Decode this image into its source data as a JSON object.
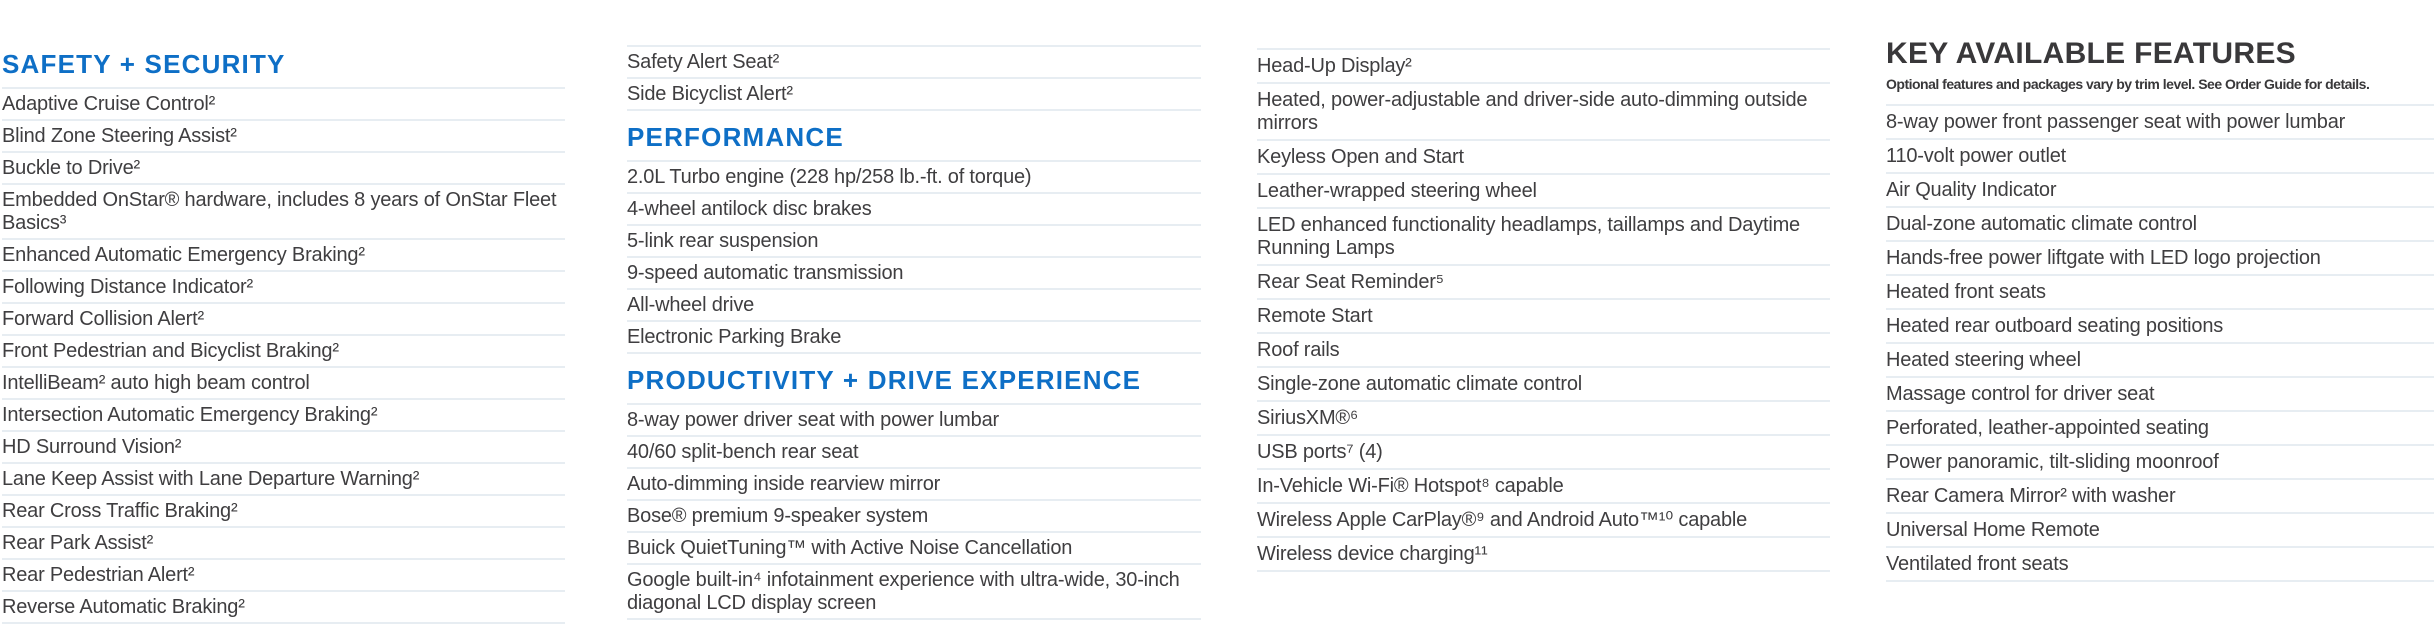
{
  "colors": {
    "accent_blue": "#0e6fc6",
    "text_dark": "#3f3e40",
    "header_dark": "#39383a",
    "divider": "#e7edf2",
    "background": "#ffffff"
  },
  "columns": [
    {
      "name": "column-safety-security",
      "sections": [
        {
          "header": {
            "label": "SAFETY + SECURITY",
            "style": "blue"
          },
          "items": [
            "Adaptive Cruise Control²",
            "Blind Zone Steering Assist²",
            "Buckle to Drive²",
            "Embedded OnStar® hardware, includes 8 years of OnStar Fleet Basics³",
            "Enhanced Automatic Emergency Braking²",
            "Following Distance Indicator²",
            "Forward Collision Alert²",
            "Front Pedestrian and Bicyclist Braking²",
            "IntelliBeam² auto high beam control",
            "Intersection Automatic Emergency Braking²",
            "HD Surround Vision²",
            "Lane Keep Assist with Lane Departure Warning²",
            "Rear Cross Traffic Braking²",
            "Rear Park Assist²",
            "Rear Pedestrian Alert²",
            "Reverse Automatic Braking²"
          ]
        }
      ]
    },
    {
      "name": "column-performance",
      "sections": [
        {
          "top_rule": true,
          "items": [
            "Safety Alert Seat²",
            "Side Bicyclist Alert²"
          ]
        },
        {
          "header": {
            "label": "PERFORMANCE",
            "style": "blue"
          },
          "items": [
            "2.0L Turbo engine (228 hp/258 lb.-ft. of torque)",
            "4-wheel antilock disc brakes",
            "5-link rear suspension",
            "9-speed automatic transmission",
            "All-wheel drive",
            "Electronic Parking Brake"
          ]
        },
        {
          "header": {
            "label": "PRODUCTIVITY + DRIVE EXPERIENCE",
            "style": "blue"
          },
          "items": [
            "8-way power driver seat with power lumbar",
            "40/60 split-bench rear seat",
            "Auto-dimming inside rearview mirror",
            "Bose® premium 9-speaker system",
            "Buick QuietTuning™ with Active Noise Cancellation",
            "Google built-in⁴ infotainment experience with ultra-wide, 30-inch diagonal LCD display screen"
          ]
        }
      ]
    },
    {
      "name": "column-productivity-continued",
      "sections": [
        {
          "top_rule": true,
          "items": [
            "Head-Up Display²",
            "Heated, power-adjustable and driver-side auto-dimming outside mirrors",
            "Keyless Open and Start",
            "Leather-wrapped steering wheel",
            "LED enhanced functionality headlamps, taillamps and Daytime Running Lamps",
            "Rear Seat Reminder⁵",
            "Remote Start",
            "Roof rails",
            "Single-zone automatic climate control",
            "SiriusXM®⁶",
            "USB ports⁷ (4)",
            "In-Vehicle Wi-Fi® Hotspot⁸ capable",
            "Wireless Apple CarPlay®⁹ and Android Auto™¹⁰ capable",
            "Wireless device charging¹¹"
          ]
        }
      ]
    },
    {
      "name": "column-key-available-features",
      "sections": [
        {
          "header": {
            "label": "KEY AVAILABLE FEATURES",
            "style": "dark"
          },
          "note": "Optional features and packages vary by trim level. See Order Guide for details.",
          "items": [
            "8-way power front passenger seat with power lumbar",
            "110-volt power outlet",
            "Air Quality Indicator",
            "Dual-zone automatic climate control",
            "Hands-free power liftgate with LED logo projection",
            "Heated front seats",
            "Heated rear outboard seating positions",
            "Heated steering wheel",
            "Massage control for driver seat",
            "Perforated, leather-appointed seating",
            "Power panoramic, tilt-sliding moonroof",
            "Rear Camera Mirror² with washer",
            "Universal Home Remote",
            "Ventilated front seats"
          ]
        }
      ]
    }
  ]
}
